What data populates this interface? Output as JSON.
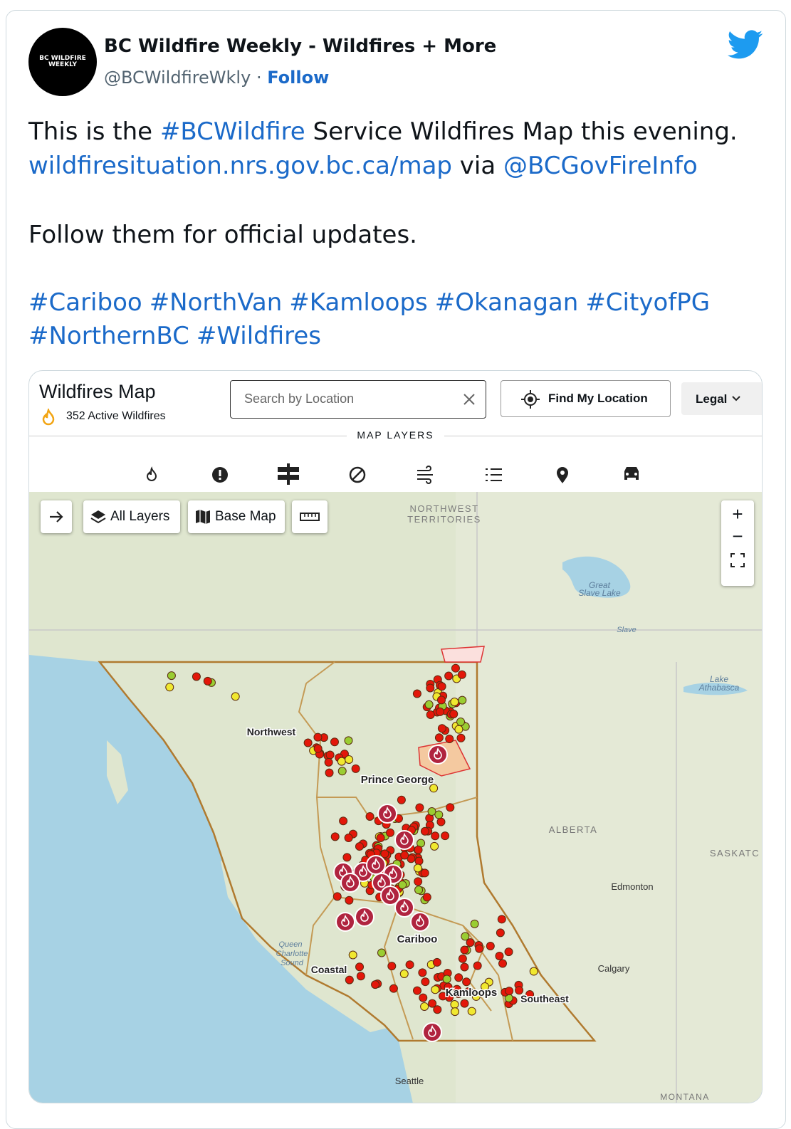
{
  "tweet": {
    "author": {
      "name": "BC Wildfire Weekly - Wildfires + More",
      "handle": "@BCWildfireWkly",
      "separator": "·",
      "follow": "Follow",
      "avatar_text": [
        "BC WILDFIRE",
        "WEEKLY"
      ]
    },
    "text": {
      "line1": [
        "This is the ",
        "#BCWildfire",
        " Service Wildfires Map this evening."
      ],
      "line2": [
        "wildfiresituation.nrs.gov.bc.ca/map",
        " via ",
        "@BCGovFireInfo"
      ],
      "line3": "Follow them for official updates.",
      "hashtags_line1": [
        "#Cariboo",
        "#NorthVan",
        "#Kamloops",
        "#Okanagan",
        "#CityofPG"
      ],
      "hashtags_line2": [
        "#NorthernBC",
        "#Wildfires"
      ]
    }
  },
  "map": {
    "title": "Wildfires Map",
    "active": "352 Active Wildfires",
    "search_placeholder": "Search by Location",
    "find_location": "Find My Location",
    "legal": "Legal",
    "layers_heading": "MAP LAYERS",
    "all_layers": "All Layers",
    "base_map": "Base Map",
    "zoom_in": "+",
    "zoom_out": "−",
    "labels": [
      "NORTHWEST",
      "TERRITORIES",
      "Great",
      "Slave Lake",
      "Slave",
      "Lake",
      "Athabasca",
      "ALBERTA",
      "SASKATC",
      "Edmonton",
      "Calgary",
      "Northwest",
      "Prince George",
      "Cariboo",
      "Coastal",
      "Kamloops",
      "Southeast",
      "Seattle",
      "MONTANA",
      "Queen",
      "Charlotte",
      "Sound"
    ]
  }
}
